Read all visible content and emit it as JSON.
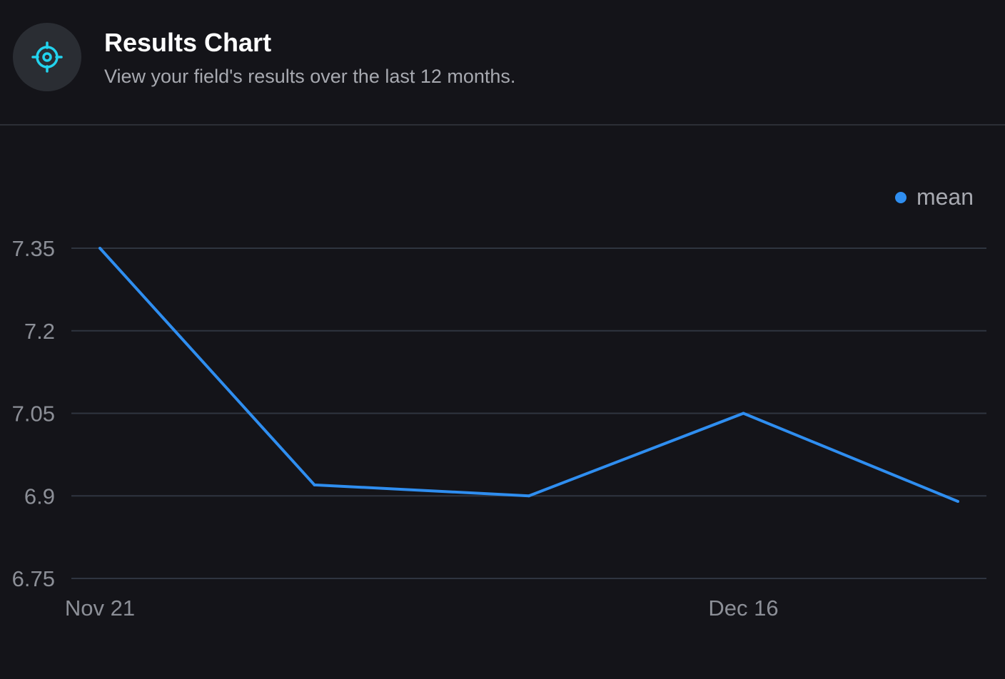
{
  "header": {
    "title": "Results Chart",
    "subtitle": "View your field's results over the last 12 months.",
    "icon": "target-icon",
    "icon_color": "#22d3ee"
  },
  "legend": {
    "label": "mean"
  },
  "colors": {
    "line": "#2f8ef0",
    "grid": "#2f3540",
    "tick_text": "#8c8f97"
  },
  "chart_data": {
    "type": "line",
    "title": "",
    "xlabel": "",
    "ylabel": "",
    "ylim": [
      6.75,
      7.35
    ],
    "yticks": [
      7.35,
      7.2,
      7.05,
      6.9,
      6.75
    ],
    "ytick_labels": [
      "7.35",
      "7.2",
      "7.05",
      "6.9",
      "6.75"
    ],
    "xtick_labels": [
      {
        "label": "Nov 21",
        "index": 0
      },
      {
        "label": "Dec 16",
        "index": 3
      }
    ],
    "grid": true,
    "legend_position": "top-right",
    "series": [
      {
        "name": "mean",
        "values": [
          7.35,
          6.92,
          6.9,
          7.05,
          6.89
        ]
      }
    ]
  }
}
